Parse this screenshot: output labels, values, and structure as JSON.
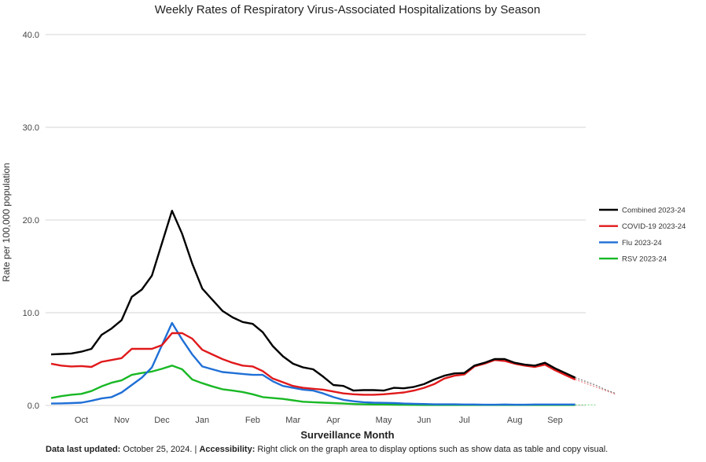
{
  "chart_data": {
    "type": "line",
    "title": "Weekly Rates of Respiratory Virus-Associated Hospitalizations by Season",
    "xlabel": "Surveillance Month",
    "ylabel": "Rate per 100,000 population",
    "ylim": [
      0,
      40
    ],
    "yticks": [
      "0.0",
      "10.0",
      "20.0",
      "30.0",
      "40.0"
    ],
    "ytick_values": [
      0,
      10,
      20,
      30,
      40
    ],
    "months": [
      {
        "label": "Oct",
        "week": 3
      },
      {
        "label": "Nov",
        "week": 7
      },
      {
        "label": "Dec",
        "week": 11
      },
      {
        "label": "Jan",
        "week": 15
      },
      {
        "label": "Feb",
        "week": 20
      },
      {
        "label": "Mar",
        "week": 24
      },
      {
        "label": "Apr",
        "week": 28
      },
      {
        "label": "May",
        "week": 33
      },
      {
        "label": "Jun",
        "week": 37
      },
      {
        "label": "Jul",
        "week": 41
      },
      {
        "label": "Aug",
        "week": 46
      },
      {
        "label": "Sep",
        "week": 50
      }
    ],
    "grid": true,
    "legend_position": "right",
    "series": [
      {
        "name": "Combined 2023-24",
        "color": "#000000",
        "values": [
          5.5,
          5.55,
          5.6,
          5.8,
          6.1,
          7.6,
          8.3,
          9.2,
          11.7,
          12.5,
          14.0,
          17.5,
          21.0,
          18.5,
          15.3,
          12.6,
          11.4,
          10.2,
          9.5,
          9.0,
          8.8,
          7.9,
          6.4,
          5.3,
          4.5,
          4.1,
          3.9,
          3.1,
          2.2,
          2.1,
          1.6,
          1.65,
          1.65,
          1.6,
          1.9,
          1.85,
          2.0,
          2.3,
          2.8,
          3.2,
          3.45,
          3.5,
          4.3,
          4.6,
          5.0,
          5.0,
          4.6,
          4.4,
          4.3,
          4.6,
          4.0,
          3.5,
          3.0
        ],
        "projection": [
          2.6,
          2.2,
          1.7,
          1.3
        ]
      },
      {
        "name": "COVID-19 2023-24",
        "color": "#e0191b",
        "values": [
          4.5,
          4.3,
          4.2,
          4.25,
          4.15,
          4.7,
          4.9,
          5.1,
          6.1,
          6.1,
          6.1,
          6.5,
          7.8,
          7.8,
          7.2,
          6.0,
          5.5,
          5.0,
          4.6,
          4.3,
          4.2,
          3.7,
          2.9,
          2.5,
          2.1,
          1.9,
          1.8,
          1.7,
          1.5,
          1.3,
          1.2,
          1.15,
          1.15,
          1.2,
          1.3,
          1.4,
          1.6,
          1.9,
          2.3,
          2.9,
          3.2,
          3.35,
          4.2,
          4.5,
          4.9,
          4.8,
          4.5,
          4.3,
          4.15,
          4.4,
          3.8,
          3.3,
          2.8
        ],
        "projection": [
          2.4,
          2.0,
          1.6,
          1.2
        ]
      },
      {
        "name": "Flu 2023-24",
        "color": "#1f6fd6",
        "values": [
          0.2,
          0.22,
          0.25,
          0.3,
          0.5,
          0.75,
          0.9,
          1.4,
          2.2,
          3.0,
          4.1,
          6.5,
          8.9,
          7.1,
          5.5,
          4.2,
          3.9,
          3.6,
          3.5,
          3.4,
          3.3,
          3.3,
          2.6,
          2.1,
          1.9,
          1.7,
          1.6,
          1.3,
          0.9,
          0.6,
          0.45,
          0.35,
          0.3,
          0.28,
          0.25,
          0.2,
          0.18,
          0.15,
          0.12,
          0.12,
          0.12,
          0.1,
          0.1,
          0.08,
          0.08,
          0.1,
          0.08,
          0.08,
          0.1,
          0.1,
          0.1,
          0.1,
          0.1
        ]
      },
      {
        "name": "RSV 2023-24",
        "color": "#19b825",
        "values": [
          0.8,
          1.0,
          1.15,
          1.25,
          1.55,
          2.05,
          2.45,
          2.7,
          3.3,
          3.5,
          3.65,
          3.95,
          4.3,
          3.9,
          2.8,
          2.4,
          2.05,
          1.75,
          1.6,
          1.45,
          1.2,
          0.9,
          0.8,
          0.7,
          0.55,
          0.4,
          0.35,
          0.3,
          0.25,
          0.2,
          0.15,
          0.12,
          0.1,
          0.1,
          0.08,
          0.07,
          0.06,
          0.05,
          0.05,
          0.05,
          0.05,
          0.05,
          0.05,
          0.05,
          0.05,
          0.05,
          0.05,
          0.05,
          0.05,
          0.05,
          0.05,
          0.05,
          0.05
        ],
        "projection": [
          0.05,
          0.05
        ]
      }
    ]
  },
  "footer": {
    "updated_label": "Data last updated:",
    "updated_value": " October 25, 2024. | ",
    "accessibility_label": "Accessibility:",
    "accessibility_value": " Right click on the graph area to display options such as show data as table and copy visual."
  }
}
